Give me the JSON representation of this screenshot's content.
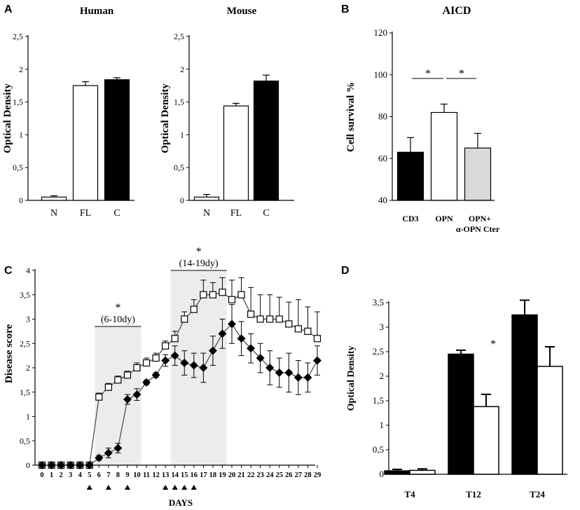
{
  "panels": {
    "A": "A",
    "B": "B",
    "C": "C",
    "D": "D"
  },
  "chart_data": [
    {
      "id": "A-human",
      "type": "bar",
      "title": "Human",
      "xlabel": "",
      "ylabel": "Optical Density",
      "categories": [
        "N",
        "FL",
        "C"
      ],
      "values": [
        0.05,
        1.75,
        1.84
      ],
      "errors": [
        0.02,
        0.06,
        0.03
      ],
      "fills": [
        "#ffffff",
        "#ffffff",
        "#000000"
      ],
      "ylim": [
        0,
        2.5
      ],
      "yticks": [
        "0",
        "0,5",
        "1",
        "1,5",
        "2",
        "2,5"
      ]
    },
    {
      "id": "A-mouse",
      "type": "bar",
      "title": "Mouse",
      "xlabel": "",
      "ylabel": "Optical Density",
      "categories": [
        "N",
        "FL",
        "C"
      ],
      "values": [
        0.05,
        1.44,
        1.82
      ],
      "errors": [
        0.04,
        0.04,
        0.09
      ],
      "fills": [
        "#ffffff",
        "#ffffff",
        "#000000"
      ],
      "ylim": [
        0,
        2.5
      ],
      "yticks": [
        "0",
        "0,5",
        "1",
        "1,5",
        "2",
        "2,5"
      ]
    },
    {
      "id": "B",
      "type": "bar",
      "title": "AICD",
      "xlabel": "",
      "ylabel": "Cell survival %",
      "categories": [
        "CD3",
        "OPN",
        "OPN+"
      ],
      "category_sublabel": "α-OPN Cter",
      "values": [
        63,
        82,
        65
      ],
      "errors": [
        7,
        4,
        7
      ],
      "fills": [
        "#000000",
        "#ffffff",
        "#d9d9d9"
      ],
      "ylim": [
        40,
        120
      ],
      "yticks": [
        "40",
        "60",
        "80",
        "100",
        "120"
      ],
      "significance": [
        "*",
        "*"
      ]
    },
    {
      "id": "C",
      "type": "line",
      "title": "",
      "xlabel": "DAYS",
      "ylabel": "Disease score",
      "x": [
        0,
        1,
        2,
        3,
        4,
        5,
        6,
        7,
        8,
        9,
        10,
        11,
        12,
        13,
        14,
        15,
        16,
        17,
        18,
        19,
        20,
        21,
        22,
        23,
        24,
        25,
        26,
        27,
        28,
        29
      ],
      "xticks": [
        "0",
        "1",
        "2",
        "3",
        "4",
        "5",
        "6",
        "7",
        "8",
        "9",
        "10",
        "11",
        "12",
        "13",
        "14",
        "15",
        "16",
        "17",
        "18",
        "19",
        "20",
        "21",
        "22",
        "23",
        "24",
        "25",
        "26",
        "27",
        "28",
        "29"
      ],
      "ylim": [
        0,
        4
      ],
      "yticks": [
        "0",
        "0,5",
        "1",
        "1,5",
        "2",
        "2,5",
        "3",
        "3,5",
        "4"
      ],
      "series": [
        {
          "name": "open squares",
          "marker": "square",
          "values": [
            0,
            0,
            0,
            0,
            0,
            0,
            1.4,
            1.6,
            1.75,
            1.85,
            2.0,
            2.1,
            2.2,
            2.45,
            2.6,
            3.0,
            3.2,
            3.5,
            3.5,
            3.55,
            3.4,
            3.5,
            3.1,
            3.0,
            3.0,
            3.0,
            2.9,
            2.8,
            2.75,
            2.6
          ],
          "errors": [
            0,
            0,
            0,
            0,
            0,
            0,
            0.08,
            0.08,
            0.08,
            0.08,
            0.1,
            0.1,
            0.1,
            0.1,
            0.15,
            0.15,
            0.2,
            0.3,
            0.25,
            0.3,
            0.4,
            0.35,
            0.55,
            0.5,
            0.5,
            0.45,
            0.45,
            0.6,
            0.5,
            0.55
          ]
        },
        {
          "name": "filled diamonds",
          "marker": "diamond",
          "values": [
            0,
            0,
            0,
            0,
            0,
            0,
            0.15,
            0.25,
            0.35,
            1.35,
            1.45,
            1.7,
            1.85,
            2.15,
            2.25,
            2.1,
            2.05,
            2.0,
            2.35,
            2.7,
            2.9,
            2.6,
            2.4,
            2.2,
            2.0,
            1.9,
            1.9,
            1.8,
            1.8,
            2.15
          ],
          "errors": [
            0,
            0,
            0,
            0,
            0,
            0,
            0.05,
            0.1,
            0.1,
            0.1,
            0.12,
            0.05,
            0.05,
            0.12,
            0.2,
            0.25,
            0.25,
            0.3,
            0.3,
            0.3,
            0.4,
            0.35,
            0.3,
            0.3,
            0.35,
            0.3,
            0.4,
            0.35,
            0.3,
            0.3
          ]
        }
      ],
      "shaded_ranges": [
        {
          "from": 6,
          "to": 10,
          "label": "(6-10dy)",
          "star": "*"
        },
        {
          "from": 14,
          "to": 19,
          "label": "(14-19dy)",
          "star": "*"
        }
      ],
      "arrow_days": [
        5,
        7,
        9,
        13,
        14,
        15,
        16
      ]
    },
    {
      "id": "D",
      "type": "bar",
      "title": "",
      "xlabel": "",
      "ylabel": "Optical Density",
      "categories": [
        "T4",
        "T12",
        "T24"
      ],
      "series": [
        {
          "name": "black",
          "fill": "#000000",
          "values": [
            0.07,
            2.45,
            3.25
          ],
          "errors": [
            0.03,
            0.08,
            0.3
          ]
        },
        {
          "name": "white",
          "fill": "#ffffff",
          "values": [
            0.08,
            1.38,
            2.2
          ],
          "errors": [
            0.03,
            0.25,
            0.4
          ]
        }
      ],
      "ylim": [
        0,
        3.5
      ],
      "yticks": [
        "0",
        "0,5",
        "1",
        "1,5",
        "2",
        "2,5",
        "3",
        "3,5"
      ],
      "significance": [
        "*"
      ]
    }
  ]
}
